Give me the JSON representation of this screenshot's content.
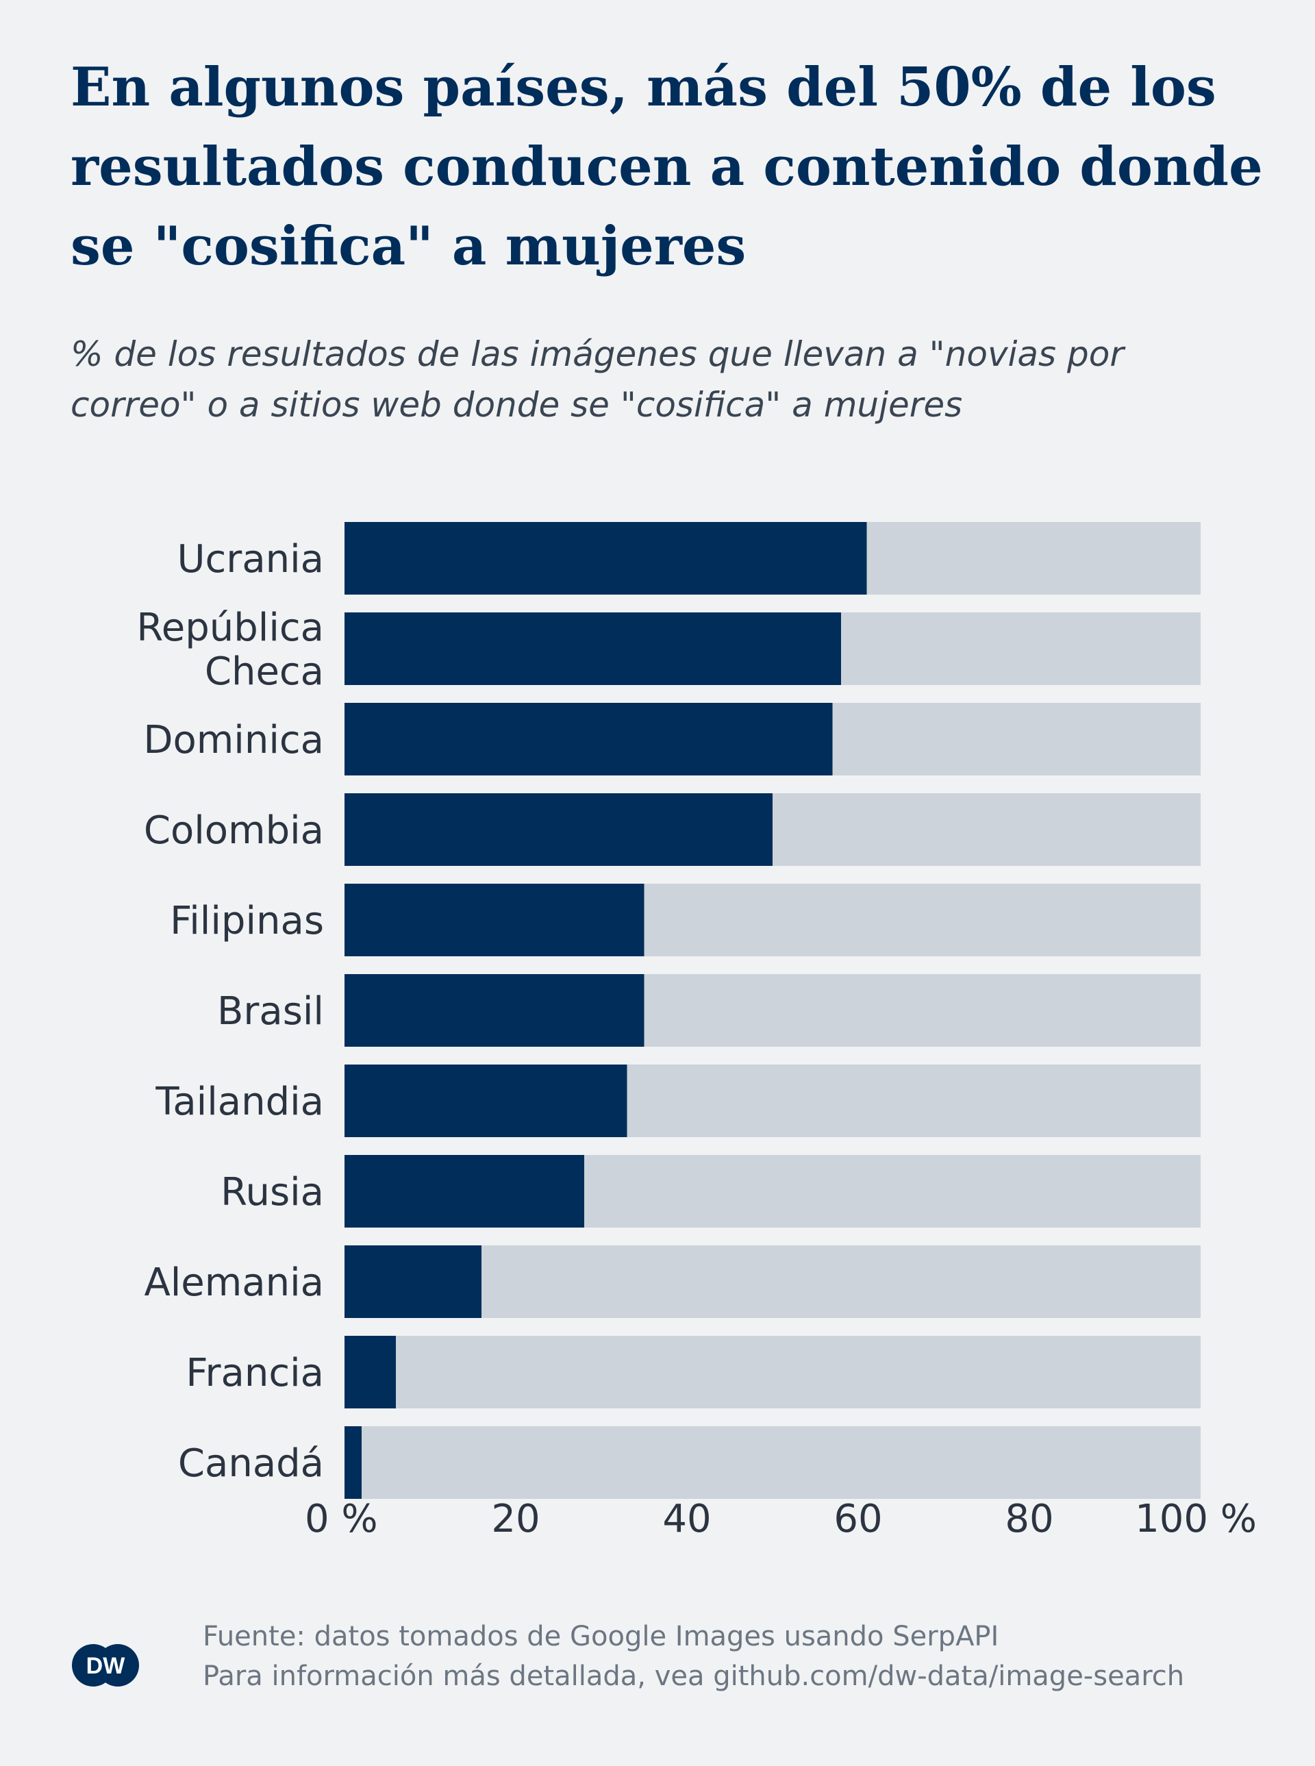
{
  "header": {
    "title": "En algunos países, más del 50% de los resultados conducen a contenido donde se \"cosifica\" a mujeres",
    "subtitle": "% de los resultados de las imágenes que llevan a \"novias por correo\" o a sitios web donde se \"cosifica\" a mujeres"
  },
  "chart_data": {
    "type": "bar",
    "orientation": "horizontal",
    "stacked_background_to": 100,
    "categories": [
      "Ucrania",
      "República\nCheca",
      "Dominica",
      "Colombia",
      "Filipinas",
      "Brasil",
      "Tailandia",
      "Rusia",
      "Alemania",
      "Francia",
      "Canadá"
    ],
    "values": [
      61,
      58,
      57,
      50,
      35,
      35,
      33,
      28,
      16,
      6,
      2
    ],
    "xlim": [
      0,
      100
    ],
    "xticks": [
      "0 %",
      "20",
      "40",
      "60",
      "80",
      "100 %"
    ],
    "xtick_values": [
      0,
      20,
      40,
      60,
      80,
      100
    ],
    "colors": {
      "value": "#002d5a",
      "remainder": "#cdd3da",
      "label": "#2b3440"
    },
    "grid": false,
    "legend": "none"
  },
  "footer": {
    "source_line1": "Fuente: datos tomados de Google Images usando SerpAPI",
    "source_line2": "Para información más detallada, vea github.com/dw-data/image-search",
    "logo_text": "DW"
  }
}
